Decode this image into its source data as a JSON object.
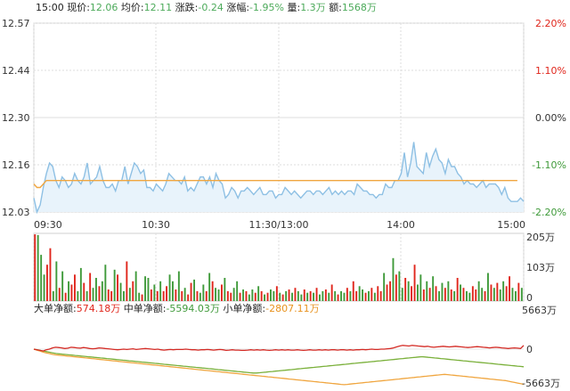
{
  "header": {
    "time": "15:00",
    "price_label": "现价:",
    "price": "12.06",
    "avg_label": "均价:",
    "avg": "12.11",
    "change_label": "涨跌:",
    "change": "-0.24",
    "pct_label": "涨幅:",
    "pct": "-1.95%",
    "vol_label": "量:",
    "vol": "1.3万",
    "amt_label": "额:",
    "amt": "1568万"
  },
  "flow": {
    "big_label": "大单净额:",
    "big": "574.18万",
    "mid_label": "中单净额:",
    "mid": "-5594.03万",
    "small_label": "小单净额:",
    "small": "-2807.11万"
  },
  "colors": {
    "price_line": "#8ec0e4",
    "price_fill": "#e8f3fb",
    "avg_line": "#f0a640",
    "up": "#e0261c",
    "down": "#3f9a3a",
    "flow_big": "#d42a24",
    "flow_mid": "#f0a640",
    "flow_small": "#7ab03a",
    "axis_left": "#333333",
    "axis_red": "#e0261c",
    "axis_green": "#3f9a3a"
  },
  "chart_data": {
    "type": "line",
    "y_ticks_left": [
      "12.57",
      "12.44",
      "12.30",
      "12.16",
      "12.03"
    ],
    "y_ticks_right": [
      "2.20%",
      "1.10%",
      "0.00%",
      "-1.10%",
      "-2.20%"
    ],
    "x_ticks": [
      "09:30",
      "10:30",
      "11:30/13:00",
      "14:00",
      "15:00"
    ],
    "ylim": [
      12.03,
      12.57
    ],
    "price": [
      12.07,
      12.03,
      12.05,
      12.1,
      12.14,
      12.17,
      12.16,
      12.12,
      12.1,
      12.13,
      12.12,
      12.1,
      12.11,
      12.14,
      12.12,
      12.11,
      12.13,
      12.17,
      12.11,
      12.12,
      12.13,
      12.16,
      12.12,
      12.1,
      12.1,
      12.11,
      12.09,
      12.12,
      12.12,
      12.16,
      12.11,
      12.14,
      12.17,
      12.16,
      12.14,
      12.15,
      12.1,
      12.1,
      12.09,
      12.11,
      12.1,
      12.09,
      12.11,
      12.14,
      12.13,
      12.12,
      12.12,
      12.11,
      12.13,
      12.09,
      12.1,
      12.09,
      12.11,
      12.13,
      12.13,
      12.11,
      12.13,
      12.1,
      12.14,
      12.12,
      12.11,
      12.07,
      12.08,
      12.1,
      12.09,
      12.07,
      12.09,
      12.09,
      12.1,
      12.09,
      12.08,
      12.09,
      12.1,
      12.08,
      12.08,
      12.09,
      12.09,
      12.07,
      12.08,
      12.08,
      12.1,
      12.09,
      12.08,
      12.09,
      12.08,
      12.07,
      12.08,
      12.09,
      12.09,
      12.08,
      12.09,
      12.09,
      12.08,
      12.09,
      12.1,
      12.08,
      12.09,
      12.08,
      12.09,
      12.08,
      12.09,
      12.09,
      12.08,
      12.11,
      12.1,
      12.09,
      12.09,
      12.08,
      12.08,
      12.07,
      12.08,
      12.08,
      12.11,
      12.1,
      12.1,
      12.12,
      12.12,
      12.14,
      12.2,
      12.13,
      12.17,
      12.23,
      12.16,
      12.15,
      12.14,
      12.2,
      12.16,
      12.19,
      12.21,
      12.18,
      12.17,
      12.14,
      12.18,
      12.16,
      12.16,
      12.14,
      12.13,
      12.11,
      12.12,
      12.11,
      12.11,
      12.1,
      12.11,
      12.12,
      12.1,
      12.11,
      12.11,
      12.11,
      12.1,
      12.08,
      12.1,
      12.07,
      12.06,
      12.06,
      12.06,
      12.07,
      12.06
    ],
    "avg": [
      12.11,
      12.1,
      12.1,
      12.11,
      12.12,
      12.12,
      12.12,
      12.12,
      12.12,
      12.12,
      12.12,
      12.12,
      12.12,
      12.12,
      12.12,
      12.12,
      12.12,
      12.12,
      12.12,
      12.12,
      12.12,
      12.12,
      12.12,
      12.12,
      12.12,
      12.12,
      12.12,
      12.12,
      12.12,
      12.12,
      12.12,
      12.12,
      12.12,
      12.12,
      12.12,
      12.12,
      12.12,
      12.12,
      12.12,
      12.12,
      12.12,
      12.12,
      12.12,
      12.12,
      12.12,
      12.12,
      12.12,
      12.12,
      12.12,
      12.12,
      12.12,
      12.12,
      12.12,
      12.12,
      12.12,
      12.12,
      12.12,
      12.12,
      12.12,
      12.12,
      12.12,
      12.12,
      12.12,
      12.12,
      12.12,
      12.12,
      12.12,
      12.12,
      12.12,
      12.12,
      12.12,
      12.12,
      12.12,
      12.12,
      12.12,
      12.12,
      12.12,
      12.12,
      12.12,
      12.12,
      12.12,
      12.12,
      12.12,
      12.12,
      12.12,
      12.12,
      12.12,
      12.12,
      12.12,
      12.12,
      12.12,
      12.12,
      12.12,
      12.12,
      12.12,
      12.12,
      12.12,
      12.12,
      12.12,
      12.12,
      12.12,
      12.12,
      12.12,
      12.12,
      12.12,
      12.12,
      12.12,
      12.12,
      12.12,
      12.12,
      12.12,
      12.12,
      12.12,
      12.12,
      12.12,
      12.12,
      12.12,
      12.12,
      12.12,
      12.12,
      12.12,
      12.12,
      12.12,
      12.12,
      12.12,
      12.12,
      12.12,
      12.12,
      12.12,
      12.12,
      12.12,
      12.12,
      12.12,
      12.12,
      12.12,
      12.12,
      12.12,
      12.12,
      12.12,
      12.12,
      12.12,
      12.12,
      12.12,
      12.12,
      12.12,
      12.12,
      12.12,
      12.12,
      12.12,
      12.12,
      12.12,
      12.12,
      12.12,
      12.12,
      12.12
    ],
    "volume_ticks": [
      "205万",
      "103万",
      "0"
    ],
    "volume_max": 205,
    "volume": [
      202,
      200,
      140,
      80,
      110,
      160,
      30,
      120,
      40,
      90,
      25,
      60,
      50,
      80,
      30,
      100,
      55,
      30,
      85,
      40,
      70,
      45,
      60,
      110,
      35,
      30,
      95,
      80,
      55,
      30,
      120,
      40,
      60,
      90,
      25,
      20,
      75,
      70,
      35,
      50,
      30,
      60,
      30,
      45,
      80,
      60,
      35,
      90,
      30,
      40,
      20,
      55,
      65,
      30,
      25,
      50,
      30,
      85,
      60,
      40,
      35,
      50,
      70,
      30,
      25,
      40,
      60,
      25,
      35,
      30,
      20,
      35,
      25,
      45,
      30,
      20,
      25,
      35,
      30,
      45,
      25,
      20,
      30,
      35,
      25,
      40,
      30,
      20,
      35,
      25,
      30,
      25,
      40,
      20,
      30,
      35,
      25,
      50,
      30,
      20,
      30,
      25,
      40,
      30,
      60,
      30,
      45,
      35,
      25,
      30,
      40,
      25,
      45,
      30,
      85,
      50,
      60,
      130,
      80,
      90,
      40,
      70,
      60,
      45,
      110,
      50,
      80,
      35,
      60,
      40,
      75,
      45,
      30,
      55,
      40,
      60,
      35,
      30,
      70,
      50,
      40,
      30,
      25,
      45,
      35,
      60,
      40,
      30,
      85,
      50,
      40,
      55,
      35,
      60,
      45,
      75,
      40,
      30,
      55,
      40
    ],
    "volume_up": [
      true,
      false,
      false,
      false,
      true,
      true,
      false,
      false,
      true,
      false,
      true,
      false,
      true,
      true,
      false,
      false,
      true,
      false,
      true,
      false,
      false,
      true,
      false,
      false,
      true,
      true,
      false,
      true,
      false,
      false,
      true,
      false,
      true,
      false,
      false,
      true,
      false,
      false,
      true,
      false,
      true,
      false,
      true,
      true,
      false,
      false,
      true,
      false,
      true,
      false,
      true,
      true,
      false,
      true,
      false,
      false,
      true,
      false,
      true,
      false,
      false,
      true,
      false,
      true,
      true,
      false,
      false,
      true,
      false,
      true,
      false,
      false,
      true,
      false,
      true,
      false,
      true,
      false,
      false,
      true,
      false,
      true,
      false,
      true,
      false,
      true,
      false,
      false,
      true,
      false,
      true,
      false,
      true,
      false,
      false,
      true,
      false,
      true,
      false,
      true,
      false,
      false,
      true,
      false,
      true,
      true,
      false,
      false,
      true,
      false,
      true,
      false,
      true,
      true,
      false,
      true,
      true,
      false,
      true,
      false,
      false,
      true,
      false,
      true,
      true,
      false,
      false,
      true,
      false,
      true,
      false,
      true,
      false,
      false,
      true,
      false,
      true,
      false,
      true,
      false,
      true,
      false,
      false,
      true,
      true,
      false,
      false,
      true,
      false,
      true,
      false,
      true,
      false,
      false,
      true,
      true,
      false,
      false,
      true,
      false
    ],
    "flow_ticks": [
      "5663万",
      "0",
      "-5663万"
    ],
    "flow_range": [
      -5663,
      5663
    ],
    "flow_big_series": [
      0,
      -100,
      -200,
      -300,
      -100,
      0,
      200,
      300,
      250,
      200,
      100,
      150,
      300,
      250,
      200,
      150,
      250,
      200,
      100,
      50,
      100,
      200,
      150,
      100,
      50,
      0,
      -50,
      -100,
      -50,
      0,
      -50,
      0,
      50,
      -50,
      0,
      50,
      100,
      50,
      0,
      -50,
      0,
      -100,
      -150,
      -100,
      -50,
      -100,
      -50,
      -50,
      -50,
      0,
      -50,
      -100,
      -100,
      -150,
      -100,
      -100,
      -50,
      -100,
      -150,
      -100,
      -50,
      -100,
      -200,
      -150,
      -100,
      -150,
      -150,
      -200,
      -200,
      -150,
      -100,
      -150,
      -100,
      -150,
      -100,
      -150,
      -200,
      -150,
      -100,
      -150,
      -100,
      -150,
      -100,
      -150,
      -150,
      -100,
      -150,
      -200,
      -150,
      -100,
      -150,
      -150,
      -100,
      -150,
      -100,
      -150,
      -100,
      -100,
      -150,
      -100,
      -100,
      -150,
      -100,
      -150,
      -100,
      -100,
      -50,
      -100,
      -50,
      0,
      -50,
      -50,
      0,
      0,
      50,
      100,
      200,
      350,
      500,
      600,
      550,
      500,
      600,
      550,
      500,
      450,
      400,
      450,
      350,
      300,
      350,
      400,
      450,
      400,
      350,
      400,
      450,
      400,
      350,
      300,
      250,
      300,
      350,
      400,
      350,
      300,
      250,
      200,
      250,
      300,
      250,
      200,
      150,
      100,
      150,
      200,
      150,
      100,
      574
    ],
    "flow_mid_series": [
      0,
      -150,
      -300,
      -450,
      -600,
      -700,
      -800,
      -900,
      -950,
      -1000,
      -1050,
      -1100,
      -1150,
      -1200,
      -1250,
      -1300,
      -1350,
      -1400,
      -1450,
      -1500,
      -1550,
      -1600,
      -1650,
      -1700,
      -1750,
      -1800,
      -1850,
      -1900,
      -1950,
      -2000,
      -2050,
      -2100,
      -2150,
      -2200,
      -2250,
      -2300,
      -2350,
      -2400,
      -2450,
      -2500,
      -2550,
      -2600,
      -2650,
      -2700,
      -2750,
      -2800,
      -2850,
      -2900,
      -2950,
      -3000,
      -3050,
      -3100,
      -3150,
      -3200,
      -3250,
      -3300,
      -3350,
      -3400,
      -3450,
      -3500,
      -3550,
      -3600,
      -3650,
      -3700,
      -3750,
      -3800,
      -3850,
      -3900,
      -3950,
      -4000,
      -4050,
      -4100,
      -4150,
      -4200,
      -4250,
      -4300,
      -4350,
      -4400,
      -4450,
      -4500,
      -4550,
      -4600,
      -4650,
      -4700,
      -4750,
      -4800,
      -4850,
      -4900,
      -4950,
      -5000,
      -5050,
      -5100,
      -5150,
      -5200,
      -5250,
      -5300,
      -5350,
      -5400,
      -5450,
      -5500,
      -5550,
      -5600,
      -5650,
      -5600,
      -5550,
      -5500,
      -5450,
      -5400,
      -5350,
      -5300,
      -5250,
      -5200,
      -5150,
      -5100,
      -5050,
      -5000,
      -4950,
      -4900,
      -4850,
      -4800,
      -4750,
      -4700,
      -4650,
      -4600,
      -4550,
      -4500,
      -4450,
      -4400,
      -4350,
      -4300,
      -4250,
      -4200,
      -4150,
      -4100,
      -4050,
      -4000,
      -4050,
      -4100,
      -4150,
      -4200,
      -4250,
      -4300,
      -4350,
      -4400,
      -4450,
      -4500,
      -4550,
      -4600,
      -4650,
      -4700,
      -4750,
      -4800,
      -4850,
      -4900,
      -4950,
      -5000,
      -5100,
      -5200,
      -5300,
      -5400,
      -5500,
      -5594
    ],
    "flow_small_series": [
      0,
      -100,
      -200,
      -300,
      -400,
      -500,
      -600,
      -700,
      -750,
      -800,
      -850,
      -900,
      -950,
      -1000,
      -1050,
      -1100,
      -1150,
      -1200,
      -1250,
      -1300,
      -1350,
      -1400,
      -1450,
      -1500,
      -1550,
      -1600,
      -1650,
      -1700,
      -1750,
      -1800,
      -1850,
      -1900,
      -1950,
      -2000,
      -2050,
      -2100,
      -2150,
      -2200,
      -2250,
      -2300,
      -2350,
      -2400,
      -2450,
      -2500,
      -2550,
      -2600,
      -2650,
      -2700,
      -2750,
      -2800,
      -2850,
      -2900,
      -2950,
      -3000,
      -3050,
      -3100,
      -3150,
      -3200,
      -3250,
      -3300,
      -3350,
      -3400,
      -3450,
      -3500,
      -3550,
      -3600,
      -3650,
      -3700,
      -3750,
      -3800,
      -3800,
      -3750,
      -3700,
      -3650,
      -3600,
      -3550,
      -3500,
      -3450,
      -3400,
      -3350,
      -3300,
      -3250,
      -3200,
      -3150,
      -3100,
      -3050,
      -3000,
      -2950,
      -2900,
      -2850,
      -2800,
      -2750,
      -2700,
      -2650,
      -2600,
      -2550,
      -2500,
      -2450,
      -2400,
      -2350,
      -2300,
      -2250,
      -2200,
      -2150,
      -2100,
      -2050,
      -2000,
      -1950,
      -1900,
      -1850,
      -1800,
      -1750,
      -1700,
      -1650,
      -1600,
      -1550,
      -1500,
      -1450,
      -1400,
      -1350,
      -1300,
      -1250,
      -1200,
      -1250,
      -1300,
      -1350,
      -1400,
      -1450,
      -1500,
      -1550,
      -1600,
      -1650,
      -1700,
      -1750,
      -1800,
      -1850,
      -1900,
      -1950,
      -2000,
      -2050,
      -2100,
      -2150,
      -2200,
      -2250,
      -2300,
      -2350,
      -2400,
      -2450,
      -2500,
      -2550,
      -2600,
      -2650,
      -2700,
      -2750,
      -2807
    ]
  }
}
